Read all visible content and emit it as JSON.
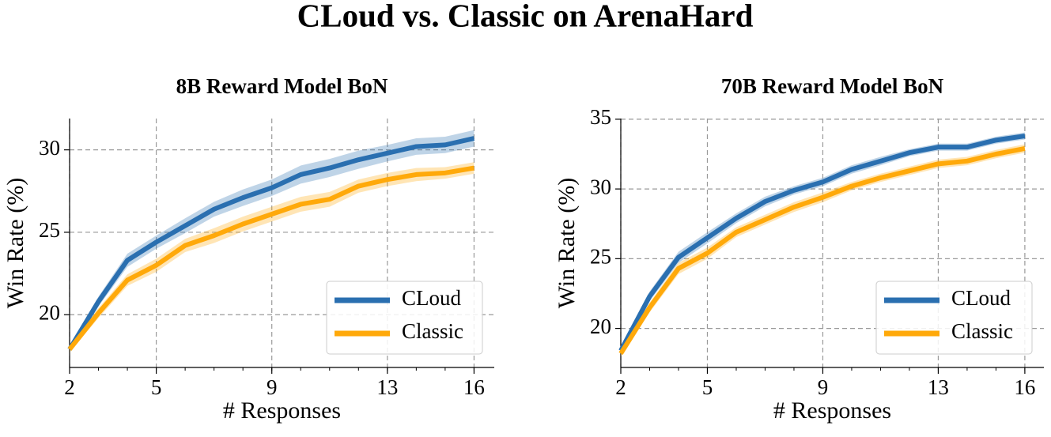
{
  "title": "CLoud vs. Classic on ArenaHard",
  "chart_data": [
    {
      "type": "line",
      "title": "8B Reward Model BoN",
      "x_label": "# Responses",
      "y_label": "Win Rate (%)",
      "x": [
        2,
        3,
        4,
        5,
        6,
        7,
        8,
        9,
        10,
        11,
        12,
        13,
        14,
        15,
        16
      ],
      "series": [
        {
          "name": "CLoud",
          "color": "#2a6fb0",
          "values": [
            17.9,
            20.8,
            23.3,
            24.4,
            25.4,
            26.4,
            27.1,
            27.7,
            28.5,
            28.9,
            29.4,
            29.8,
            30.2,
            30.3,
            30.7
          ],
          "errors": [
            0.2,
            0.3,
            0.4,
            0.4,
            0.45,
            0.45,
            0.5,
            0.5,
            0.55,
            0.55,
            0.55,
            0.5,
            0.5,
            0.5,
            0.5
          ]
        },
        {
          "name": "Classic",
          "color": "#ffa90a",
          "values": [
            17.9,
            20.1,
            22.1,
            23.0,
            24.2,
            24.8,
            25.5,
            26.1,
            26.7,
            27.0,
            27.8,
            28.2,
            28.5,
            28.6,
            28.9
          ],
          "errors": [
            0.2,
            0.3,
            0.35,
            0.4,
            0.4,
            0.45,
            0.45,
            0.45,
            0.45,
            0.45,
            0.4,
            0.4,
            0.4,
            0.35,
            0.35
          ]
        }
      ],
      "xlim": [
        2,
        16.7
      ],
      "ylim": [
        16.8,
        31.9
      ],
      "xticks": [
        2,
        5,
        9,
        13,
        16
      ],
      "yticks": [
        20,
        25,
        30
      ],
      "grid": true,
      "legend": "lower right"
    },
    {
      "type": "line",
      "title": "70B Reward Model BoN",
      "x_label": "# Responses",
      "y_label": "Win Rate (%)",
      "x": [
        2,
        3,
        4,
        5,
        6,
        7,
        8,
        9,
        10,
        11,
        12,
        13,
        14,
        15,
        16
      ],
      "series": [
        {
          "name": "CLoud",
          "color": "#2a6fb0",
          "values": [
            18.4,
            22.3,
            25.1,
            26.5,
            27.9,
            29.1,
            29.9,
            30.5,
            31.4,
            32.0,
            32.6,
            33.0,
            33.0,
            33.5,
            33.8
          ],
          "errors": [
            0.2,
            0.35,
            0.4,
            0.4,
            0.35,
            0.35,
            0.3,
            0.3,
            0.3,
            0.3,
            0.25,
            0.25,
            0.25,
            0.25,
            0.25
          ]
        },
        {
          "name": "Classic",
          "color": "#ffa90a",
          "values": [
            18.2,
            21.5,
            24.3,
            25.4,
            26.9,
            27.8,
            28.7,
            29.4,
            30.2,
            30.8,
            31.3,
            31.8,
            32.0,
            32.5,
            32.9
          ],
          "errors": [
            0.2,
            0.35,
            0.4,
            0.4,
            0.35,
            0.35,
            0.35,
            0.35,
            0.3,
            0.3,
            0.3,
            0.3,
            0.3,
            0.3,
            0.3
          ]
        }
      ],
      "xlim": [
        2,
        16.66
      ],
      "ylim": [
        17.2,
        35.05
      ],
      "xticks": [
        2,
        5,
        9,
        13,
        16
      ],
      "yticks": [
        20,
        25,
        30,
        35
      ],
      "grid": true,
      "legend": "lower right"
    }
  ]
}
